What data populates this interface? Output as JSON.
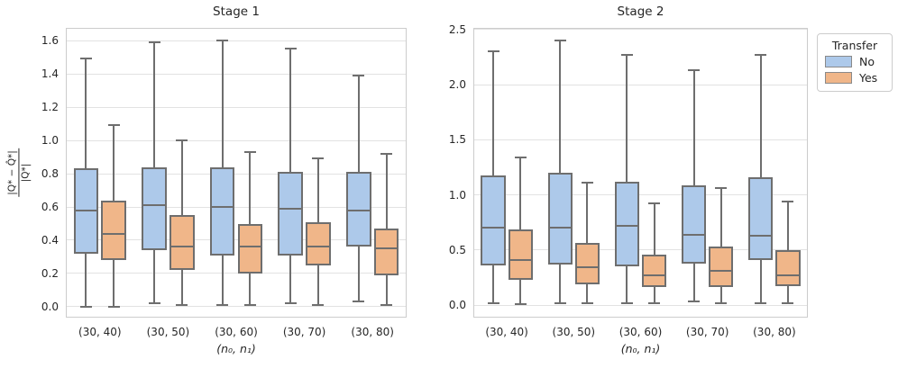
{
  "figure": {
    "background": "#ffffff"
  },
  "styles": {
    "box_edge": "#6e6e6e",
    "grid": "#e2e2e2",
    "spine": "#cccccc",
    "text": "#262626",
    "blue": "#adc9ea",
    "orange": "#f0b689"
  },
  "legend": {
    "title": "Transfer",
    "position": "outside-upper-right",
    "items": [
      {
        "label": "No",
        "color": "#adc9ea"
      },
      {
        "label": "Yes",
        "color": "#f0b689"
      }
    ]
  },
  "chart_data": [
    {
      "type": "box",
      "title": "Stage 1",
      "categories": [
        "(30, 40)",
        "(30, 50)",
        "(30, 60)",
        "(30, 70)",
        "(30, 80)"
      ],
      "xlabel": "(n₀, n₁)",
      "ylabel": {
        "numerator": "|Q* − Q̂*|",
        "denominator": "|Q*|"
      },
      "ylim": [
        -0.065,
        1.676
      ],
      "yticks": [
        0.0,
        0.2,
        0.4,
        0.6,
        0.8,
        1.0,
        1.2,
        1.4,
        1.6
      ],
      "grid": true,
      "series": [
        {
          "name": "No",
          "color": "#adc9ea",
          "boxes": [
            {
              "whislo": 0.0,
              "q1": 0.32,
              "med": 0.58,
              "q3": 0.83,
              "whishi": 1.49
            },
            {
              "whislo": 0.02,
              "q1": 0.34,
              "med": 0.61,
              "q3": 0.84,
              "whishi": 1.59
            },
            {
              "whislo": 0.01,
              "q1": 0.31,
              "med": 0.6,
              "q3": 0.84,
              "whishi": 1.6
            },
            {
              "whislo": 0.02,
              "q1": 0.31,
              "med": 0.59,
              "q3": 0.81,
              "whishi": 1.55
            },
            {
              "whislo": 0.03,
              "q1": 0.36,
              "med": 0.58,
              "q3": 0.81,
              "whishi": 1.39
            }
          ]
        },
        {
          "name": "Yes",
          "color": "#f0b689",
          "boxes": [
            {
              "whislo": 0.0,
              "q1": 0.28,
              "med": 0.44,
              "q3": 0.64,
              "whishi": 1.09
            },
            {
              "whislo": 0.01,
              "q1": 0.22,
              "med": 0.36,
              "q3": 0.55,
              "whishi": 1.0
            },
            {
              "whislo": 0.01,
              "q1": 0.2,
              "med": 0.36,
              "q3": 0.5,
              "whishi": 0.93
            },
            {
              "whislo": 0.01,
              "q1": 0.25,
              "med": 0.36,
              "q3": 0.51,
              "whishi": 0.89
            },
            {
              "whislo": 0.01,
              "q1": 0.19,
              "med": 0.35,
              "q3": 0.47,
              "whishi": 0.92
            }
          ]
        }
      ]
    },
    {
      "type": "box",
      "title": "Stage 2",
      "categories": [
        "(30, 40)",
        "(30, 50)",
        "(30, 60)",
        "(30, 70)",
        "(30, 80)"
      ],
      "xlabel": "(n₀, n₁)",
      "ylabel": null,
      "ylim": [
        -0.114,
        2.516
      ],
      "yticks": [
        0.0,
        0.5,
        1.0,
        1.5,
        2.0,
        2.5
      ],
      "grid": true,
      "series": [
        {
          "name": "No",
          "color": "#adc9ea",
          "boxes": [
            {
              "whislo": 0.02,
              "q1": 0.36,
              "med": 0.7,
              "q3": 1.18,
              "whishi": 2.3
            },
            {
              "whislo": 0.02,
              "q1": 0.37,
              "med": 0.7,
              "q3": 1.2,
              "whishi": 2.4
            },
            {
              "whislo": 0.02,
              "q1": 0.35,
              "med": 0.72,
              "q3": 1.12,
              "whishi": 2.27
            },
            {
              "whislo": 0.03,
              "q1": 0.38,
              "med": 0.64,
              "q3": 1.09,
              "whishi": 2.13
            },
            {
              "whislo": 0.02,
              "q1": 0.41,
              "med": 0.63,
              "q3": 1.16,
              "whishi": 2.27
            }
          ]
        },
        {
          "name": "Yes",
          "color": "#f0b689",
          "boxes": [
            {
              "whislo": 0.01,
              "q1": 0.23,
              "med": 0.41,
              "q3": 0.69,
              "whishi": 1.34
            },
            {
              "whislo": 0.02,
              "q1": 0.19,
              "med": 0.34,
              "q3": 0.56,
              "whishi": 1.11
            },
            {
              "whislo": 0.02,
              "q1": 0.16,
              "med": 0.27,
              "q3": 0.46,
              "whishi": 0.92
            },
            {
              "whislo": 0.02,
              "q1": 0.16,
              "med": 0.31,
              "q3": 0.53,
              "whishi": 1.06
            },
            {
              "whislo": 0.02,
              "q1": 0.17,
              "med": 0.27,
              "q3": 0.5,
              "whishi": 0.94
            }
          ]
        }
      ]
    }
  ]
}
